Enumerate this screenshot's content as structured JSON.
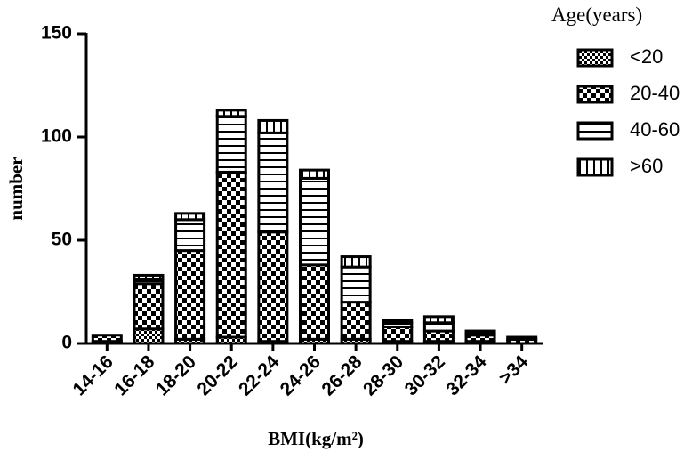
{
  "chart_data": {
    "type": "stacked_bar",
    "y_label": "number",
    "x_label": "BMI(kg/m²)",
    "legend_title": "Age(years)",
    "legend_position": "right",
    "categories": [
      "14-16",
      "16-18",
      "18-20",
      "20-22",
      "22-24",
      "24-26",
      "26-28",
      "28-30",
      "30-32",
      "32-34",
      ">34"
    ],
    "series": [
      {
        "name": "<20",
        "color": "#000000",
        "pattern": "fine-checker",
        "values": [
          1,
          7,
          2,
          3,
          1,
          2,
          2,
          1,
          1,
          1,
          0
        ]
      },
      {
        "name": "20-40",
        "color": "#000000",
        "pattern": "checker",
        "values": [
          3,
          22,
          43,
          80,
          53,
          36,
          18,
          7,
          5,
          3,
          2
        ]
      },
      {
        "name": "40-60",
        "color": "#000000",
        "pattern": "horizontal-lines",
        "values": [
          0,
          2,
          15,
          27,
          48,
          42,
          17,
          2,
          4,
          1,
          1
        ]
      },
      {
        "name": ">60",
        "color": "#000000",
        "pattern": "vertical-lines",
        "values": [
          0,
          2,
          3,
          3,
          6,
          4,
          5,
          1,
          3,
          1,
          0
        ]
      }
    ],
    "ylim": [
      0,
      150
    ],
    "yticks": [
      0,
      50,
      100,
      150
    ],
    "grid": false
  }
}
